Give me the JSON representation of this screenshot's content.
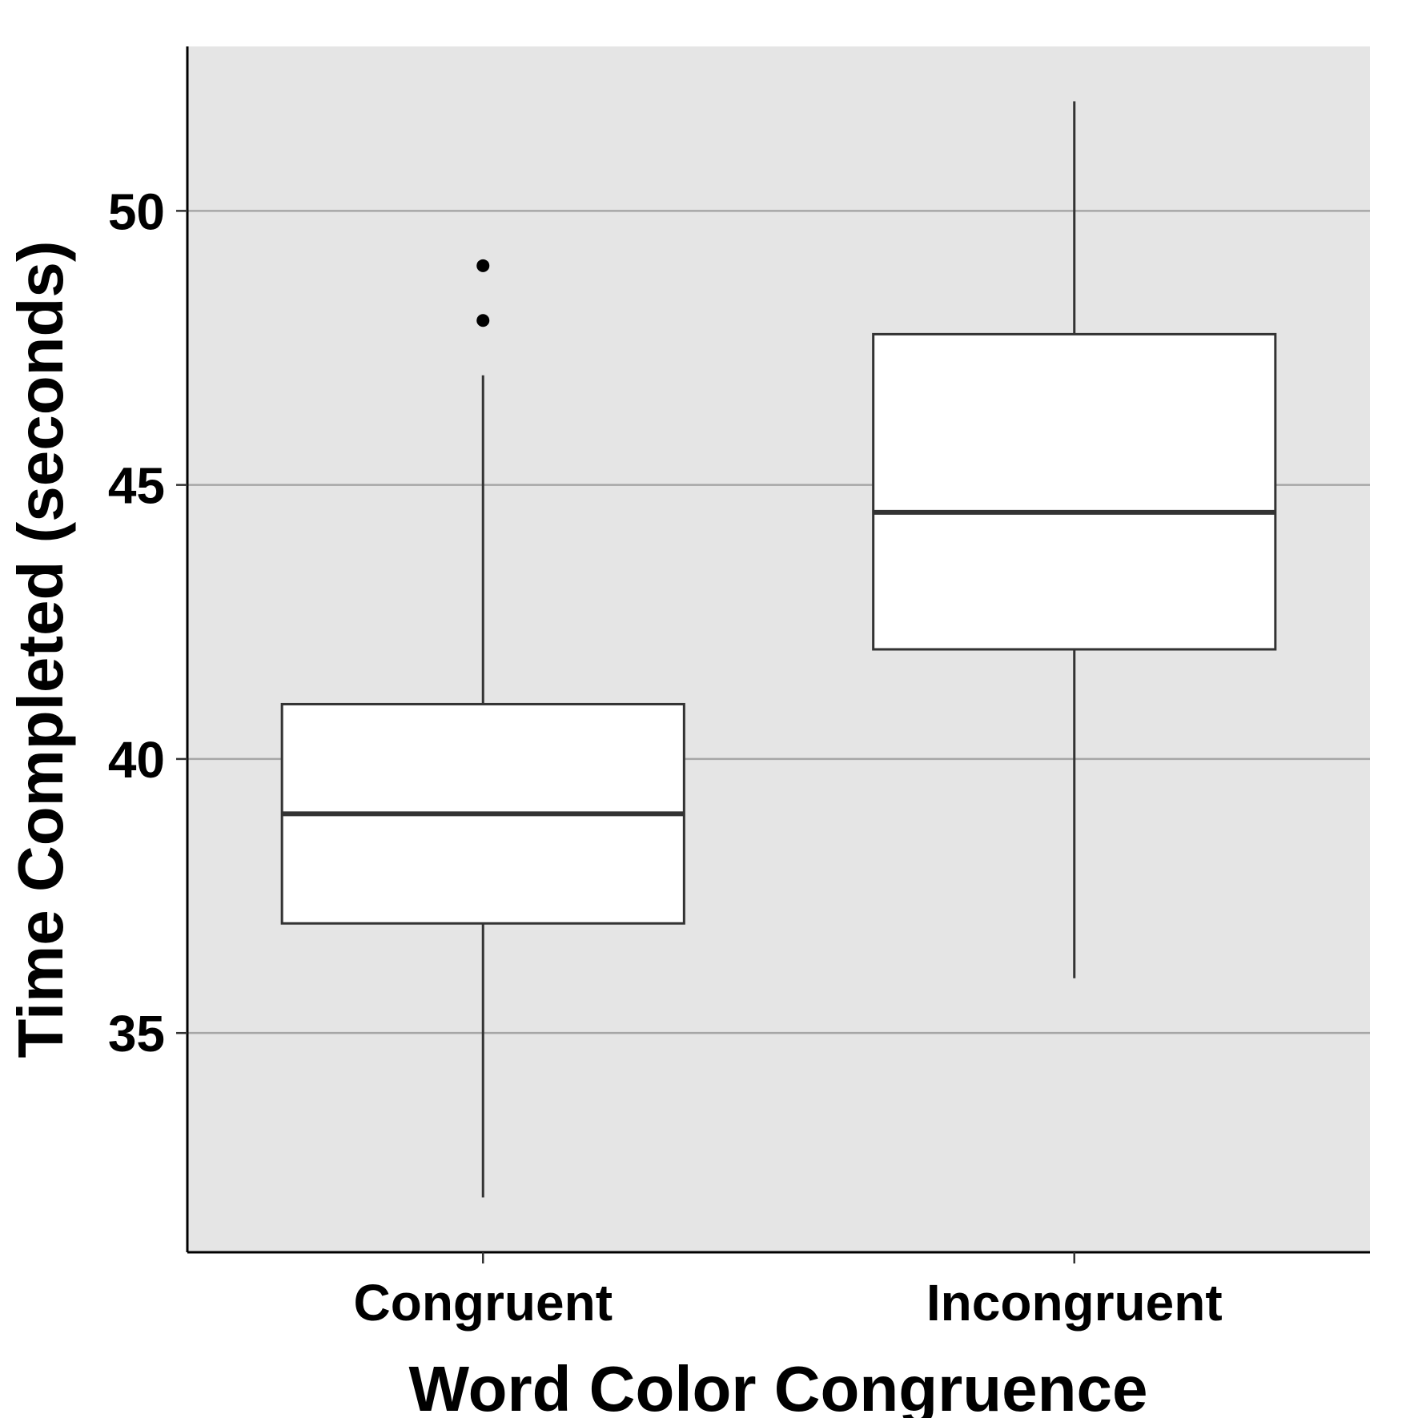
{
  "chart_data": {
    "type": "boxplot",
    "xlabel": "Word Color Congruence",
    "ylabel": "Time Completed (seconds)",
    "ylim": [
      31,
      53
    ],
    "yticks": [
      35,
      40,
      45,
      50
    ],
    "grid": true,
    "categories": [
      "Congruent",
      "Incongruent"
    ],
    "boxes": [
      {
        "category": "Congruent",
        "whisker_low": 32,
        "q1": 37,
        "median": 39,
        "q3": 41,
        "whisker_high": 47,
        "outliers": [
          48,
          49
        ]
      },
      {
        "category": "Incongruent",
        "whisker_low": 36,
        "q1": 42,
        "median": 44.5,
        "q3": 47.75,
        "whisker_high": 52,
        "outliers": []
      }
    ],
    "colors": {
      "panel": "#e5e5e5",
      "grid": "#a6a6a6",
      "box_fill": "#ffffff",
      "box_stroke": "#333333"
    }
  }
}
